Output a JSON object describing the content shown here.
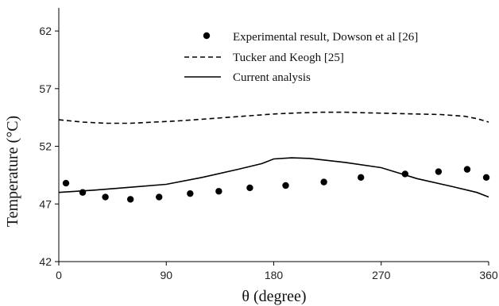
{
  "chart_data": {
    "type": "line",
    "xlabel": "θ (degree)",
    "ylabel": "Temperature (°C)",
    "xlim": [
      0,
      360
    ],
    "ylim": [
      42,
      64
    ],
    "xticks": [
      0,
      90,
      180,
      270,
      360
    ],
    "yticks": [
      42,
      47,
      52,
      57,
      62
    ],
    "grid": false,
    "legend_position": "top-right",
    "series": [
      {
        "name": "Experimental result, Dowson et al [26]",
        "style": "markers",
        "color": "#000000",
        "points": [
          [
            6,
            48.8
          ],
          [
            20,
            48.0
          ],
          [
            39,
            47.6
          ],
          [
            60,
            47.4
          ],
          [
            84,
            47.6
          ],
          [
            110,
            47.9
          ],
          [
            134,
            48.1
          ],
          [
            160,
            48.4
          ],
          [
            190,
            48.6
          ],
          [
            222,
            48.9
          ],
          [
            253,
            49.3
          ],
          [
            290,
            49.6
          ],
          [
            318,
            49.8
          ],
          [
            342,
            50.0
          ],
          [
            358,
            49.3
          ]
        ]
      },
      {
        "name": "Tucker and Keogh [25]",
        "style": "dashed",
        "color": "#000000",
        "points": [
          [
            0,
            54.3
          ],
          [
            20,
            54.1
          ],
          [
            40,
            54.0
          ],
          [
            60,
            54.0
          ],
          [
            80,
            54.1
          ],
          [
            100,
            54.2
          ],
          [
            120,
            54.35
          ],
          [
            140,
            54.5
          ],
          [
            160,
            54.65
          ],
          [
            180,
            54.8
          ],
          [
            200,
            54.9
          ],
          [
            220,
            54.95
          ],
          [
            240,
            54.95
          ],
          [
            260,
            54.9
          ],
          [
            280,
            54.85
          ],
          [
            300,
            54.8
          ],
          [
            320,
            54.75
          ],
          [
            340,
            54.6
          ],
          [
            350,
            54.4
          ],
          [
            360,
            54.1
          ]
        ]
      },
      {
        "name": "Current analysis",
        "style": "solid",
        "color": "#000000",
        "points": [
          [
            0,
            48.0
          ],
          [
            30,
            48.2
          ],
          [
            60,
            48.45
          ],
          [
            90,
            48.7
          ],
          [
            120,
            49.3
          ],
          [
            150,
            50.0
          ],
          [
            170,
            50.5
          ],
          [
            180,
            50.9
          ],
          [
            195,
            51.0
          ],
          [
            210,
            50.95
          ],
          [
            240,
            50.6
          ],
          [
            270,
            50.15
          ],
          [
            300,
            49.2
          ],
          [
            330,
            48.5
          ],
          [
            350,
            48.0
          ],
          [
            360,
            47.6
          ]
        ]
      }
    ]
  }
}
